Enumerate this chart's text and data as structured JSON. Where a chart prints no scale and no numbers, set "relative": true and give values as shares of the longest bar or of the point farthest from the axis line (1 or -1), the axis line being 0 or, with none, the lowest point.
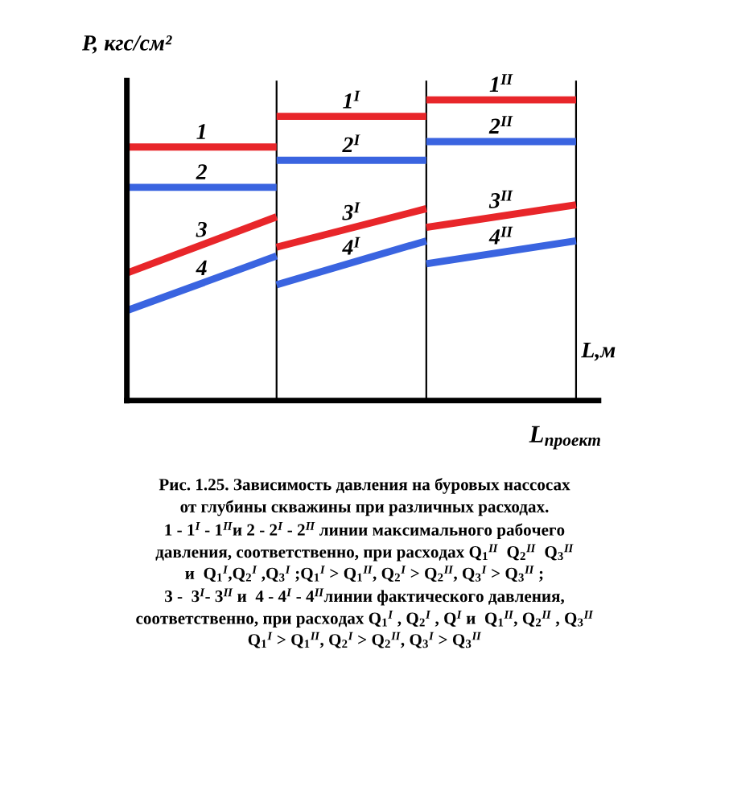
{
  "chart_data": {
    "type": "line",
    "relative": true,
    "xlabel": "L,м",
    "ylabel": "P, кгс/см²",
    "categories": [
      null,
      null,
      null,
      null
    ],
    "series": [
      {
        "name": "1",
        "color": "#e8262a",
        "values": [
          0.843,
          0.843,
          null,
          null
        ]
      },
      {
        "name": "1$^{I}$",
        "color": "#e8262a",
        "values": [
          null,
          0.945,
          0.945,
          null
        ]
      },
      {
        "name": "1$^{II}$",
        "color": "#e8262a",
        "values": [
          null,
          null,
          1,
          1
        ]
      },
      {
        "name": "2",
        "color": "#3a64e0",
        "values": [
          0.709,
          0.709,
          null,
          null
        ]
      },
      {
        "name": "2$^{I}$",
        "color": "#3a64e0",
        "values": [
          null,
          0.799,
          0.799,
          null
        ]
      },
      {
        "name": "2$^{II}$",
        "color": "#3a64e0",
        "values": [
          null,
          null,
          0.861,
          0.861
        ]
      },
      {
        "name": "3",
        "color": "#e8262a",
        "values": [
          0.424,
          0.611,
          null,
          null
        ]
      },
      {
        "name": "3$^{I}$",
        "color": "#e8262a",
        "values": [
          null,
          0.51,
          0.638,
          null
        ]
      },
      {
        "name": "3$^{II}$",
        "color": "#e8262a",
        "values": [
          null,
          null,
          0.576,
          0.651
        ]
      },
      {
        "name": "4",
        "color": "#3a64e0",
        "values": [
          0.299,
          0.481,
          null,
          null
        ]
      },
      {
        "name": "4$^{I}$",
        "color": "#3a64e0",
        "values": [
          null,
          0.385,
          0.531,
          null
        ]
      },
      {
        "name": "4$^{II}$",
        "color": "#3a64e0",
        "values": [
          null,
          null,
          0.455,
          0.531
        ]
      }
    ],
    "annotations": [
      "L$_{проект}$",
      "Рис. 1.25. Зависимость давления на буровых нассосах",
      "от глубины скважины при различных расходах.",
      "1 - 1$^{I}$ - 1$^{II}$и 2 - 2$^{I}$ - 2$^{II}$ линии максимального рабочего",
      "давления, соответственно, при расходах Q$_{1}$$^{II}$  Q$_{2}$$^{II}$  Q$_{3}$$^{II}$",
      "и  Q$_{1}$$^{I}$,Q$_{2}$$^{I}$ ,Q$_{3}$$^{I}$ ;Q$_{1}$$^{I}$ > Q$_{1}$$^{II}$, Q$_{2}$$^{I}$ > Q$_{2}$$^{II}$, Q$_{3}$$^{I}$ > Q$_{3}$$^{II}$ ;",
      "3 -  3$^{I}$- 3$^{II}$ и  4 - 4$^{I}$ - 4$^{II}$линии фактического давления,",
      "соответственно, при расходах Q$_{1}$$^{I}$ , Q$_{2}$$^{I}$ , Q$^{I}$ и  Q$_{1}$$^{II}$, Q$_{2}$$^{II}$ , Q$_{3}$$^{II}$",
      "Q$_{1}$$^{I}$ > Q$_{1}$$^{II}$, Q$_{2}$$^{I}$ > Q$_{2}$$^{II}$, Q$_{3}$$^{I}$ > Q$_{3}$$^{II}$"
    ],
    "grid": "x",
    "legend": false,
    "line_style": "solid",
    "marker": "none"
  }
}
